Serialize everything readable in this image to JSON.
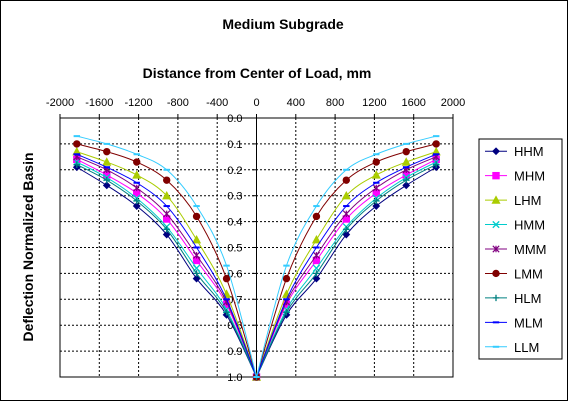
{
  "chart_data": {
    "type": "line",
    "title": "Medium Subgrade",
    "xlabel": "Distance from Center of Load, mm",
    "ylabel": "Deflection Normalized Basin",
    "x_axis_position": "top",
    "y_axis_inverted": true,
    "xlim": [
      -2000,
      2000
    ],
    "ylim": [
      0.0,
      1.0
    ],
    "x_ticks": [
      -2000,
      -1600,
      -1200,
      -800,
      -400,
      0,
      400,
      800,
      1200,
      1600,
      2000
    ],
    "y_ticks": [
      0.0,
      0.1,
      0.2,
      0.3,
      0.4,
      0.5,
      0.6,
      0.7,
      0.8,
      0.9,
      1.0
    ],
    "x_tick_labels": [
      "-2000",
      "-1600",
      "-1200",
      "-800",
      "-400",
      "0",
      "400",
      "800",
      "1200",
      "1600",
      "2000"
    ],
    "y_tick_labels": [
      "0.0",
      "0.1",
      "0.2",
      "0.3",
      "0.4",
      "0.5",
      "0.6",
      "0.7",
      "0.8",
      "0.9",
      "1.0"
    ],
    "grid": true,
    "legend_position": "right",
    "x": [
      -1829,
      -1524,
      -1219,
      -914,
      -610,
      -305,
      0,
      305,
      610,
      914,
      1219,
      1524,
      1829
    ],
    "series": [
      {
        "name": "HHM",
        "color": "#000080",
        "marker": "diamond",
        "values": [
          0.19,
          0.26,
          0.34,
          0.45,
          0.62,
          0.76,
          1.0,
          0.76,
          0.62,
          0.45,
          0.34,
          0.26,
          0.19
        ]
      },
      {
        "name": "MHM",
        "color": "#ff00ff",
        "marker": "square",
        "values": [
          0.16,
          0.22,
          0.29,
          0.39,
          0.55,
          0.72,
          1.0,
          0.72,
          0.55,
          0.39,
          0.29,
          0.22,
          0.16
        ]
      },
      {
        "name": "LHM",
        "color": "#aacc00",
        "marker": "triangle",
        "values": [
          0.13,
          0.17,
          0.22,
          0.3,
          0.47,
          0.68,
          1.0,
          0.68,
          0.47,
          0.3,
          0.22,
          0.17,
          0.13
        ]
      },
      {
        "name": "HMM",
        "color": "#00cccc",
        "marker": "x",
        "values": [
          0.17,
          0.23,
          0.31,
          0.42,
          0.58,
          0.74,
          1.0,
          0.74,
          0.58,
          0.42,
          0.31,
          0.23,
          0.17
        ]
      },
      {
        "name": "MMM",
        "color": "#800080",
        "marker": "star",
        "values": [
          0.15,
          0.2,
          0.27,
          0.37,
          0.53,
          0.71,
          1.0,
          0.71,
          0.53,
          0.37,
          0.27,
          0.2,
          0.15
        ]
      },
      {
        "name": "LMM",
        "color": "#800000",
        "marker": "circle",
        "values": [
          0.1,
          0.13,
          0.17,
          0.24,
          0.38,
          0.62,
          1.0,
          0.62,
          0.38,
          0.24,
          0.17,
          0.13,
          0.1
        ]
      },
      {
        "name": "HLM",
        "color": "#008080",
        "marker": "plus",
        "values": [
          0.18,
          0.24,
          0.32,
          0.43,
          0.6,
          0.75,
          1.0,
          0.75,
          0.6,
          0.43,
          0.32,
          0.24,
          0.18
        ]
      },
      {
        "name": "MLM",
        "color": "#0000ff",
        "marker": "dash",
        "values": [
          0.14,
          0.19,
          0.25,
          0.34,
          0.5,
          0.7,
          1.0,
          0.7,
          0.5,
          0.34,
          0.25,
          0.19,
          0.14
        ]
      },
      {
        "name": "LLM",
        "color": "#33ccff",
        "marker": "dash",
        "values": [
          0.07,
          0.1,
          0.14,
          0.2,
          0.34,
          0.57,
          1.0,
          0.57,
          0.34,
          0.2,
          0.14,
          0.1,
          0.07
        ]
      }
    ]
  }
}
